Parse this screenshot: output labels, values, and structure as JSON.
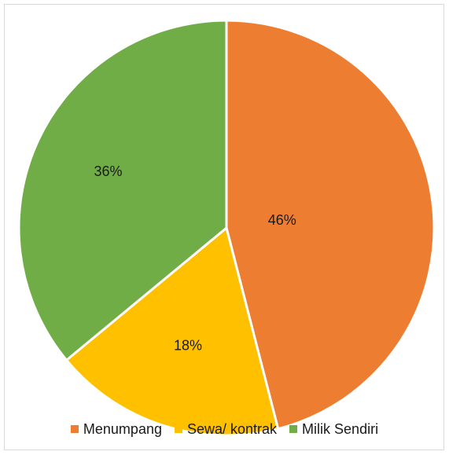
{
  "chart_data": {
    "type": "pie",
    "title": "",
    "slices": [
      {
        "label": "Menumpang",
        "value": 46,
        "display": "46%",
        "color": "#ED7D31"
      },
      {
        "label": "Sewa/ kontrak",
        "value": 18,
        "display": "18%",
        "color": "#FFC000"
      },
      {
        "label": "Milik Sendiri",
        "value": 36,
        "display": "36%",
        "color": "#70AD47"
      }
    ],
    "start_angle_deg": 0,
    "direction": "clockwise",
    "legend_position": "bottom"
  }
}
